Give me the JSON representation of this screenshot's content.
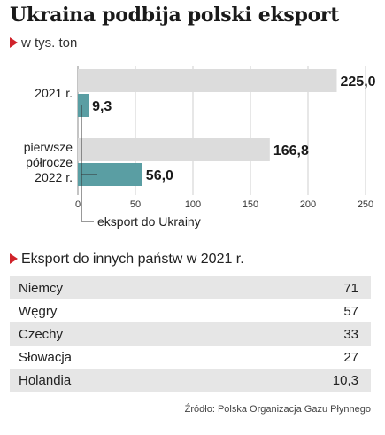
{
  "header": {
    "title": "Ukraina podbija polski eksport",
    "subtitle": "w tys. ton"
  },
  "chart_data": {
    "type": "bar",
    "orientation": "horizontal",
    "categories": [
      "2021 r.",
      "pierwsze półrocze 2022 r."
    ],
    "category_lines": [
      [
        "2021 r."
      ],
      [
        "pierwsze",
        "półrocze",
        "2022 r."
      ]
    ],
    "series": [
      {
        "name": "",
        "values": [
          225.0,
          166.8
        ],
        "labels": [
          "225,0",
          "166,8"
        ],
        "color": "#dcdcdc"
      },
      {
        "name": "eksport do Ukrainy",
        "values": [
          9.3,
          56.0
        ],
        "labels": [
          "9,3",
          "56,0"
        ],
        "color": "#5a9ea3"
      }
    ],
    "xlim": [
      0,
      250
    ],
    "xticks": [
      0,
      50,
      100,
      150,
      200,
      250
    ],
    "grid": true,
    "annotation": "eksport do Ukrainy"
  },
  "other_exports": {
    "title": "Eksport do innych państw w 2021 r.",
    "rows": [
      {
        "country": "Niemcy",
        "value": "71"
      },
      {
        "country": "Węgry",
        "value": "57"
      },
      {
        "country": "Czechy",
        "value": "33"
      },
      {
        "country": "Słowacja",
        "value": "27"
      },
      {
        "country": "Holandia",
        "value": "10,3"
      }
    ]
  },
  "footer": {
    "source": "Źródło: Polska Organizacja Gazu Płynnego"
  },
  "colors": {
    "accent": "#d0232b",
    "teal": "#5a9ea3",
    "grey_bar": "#dcdcdc",
    "row_shade": "#e6e6e6"
  }
}
